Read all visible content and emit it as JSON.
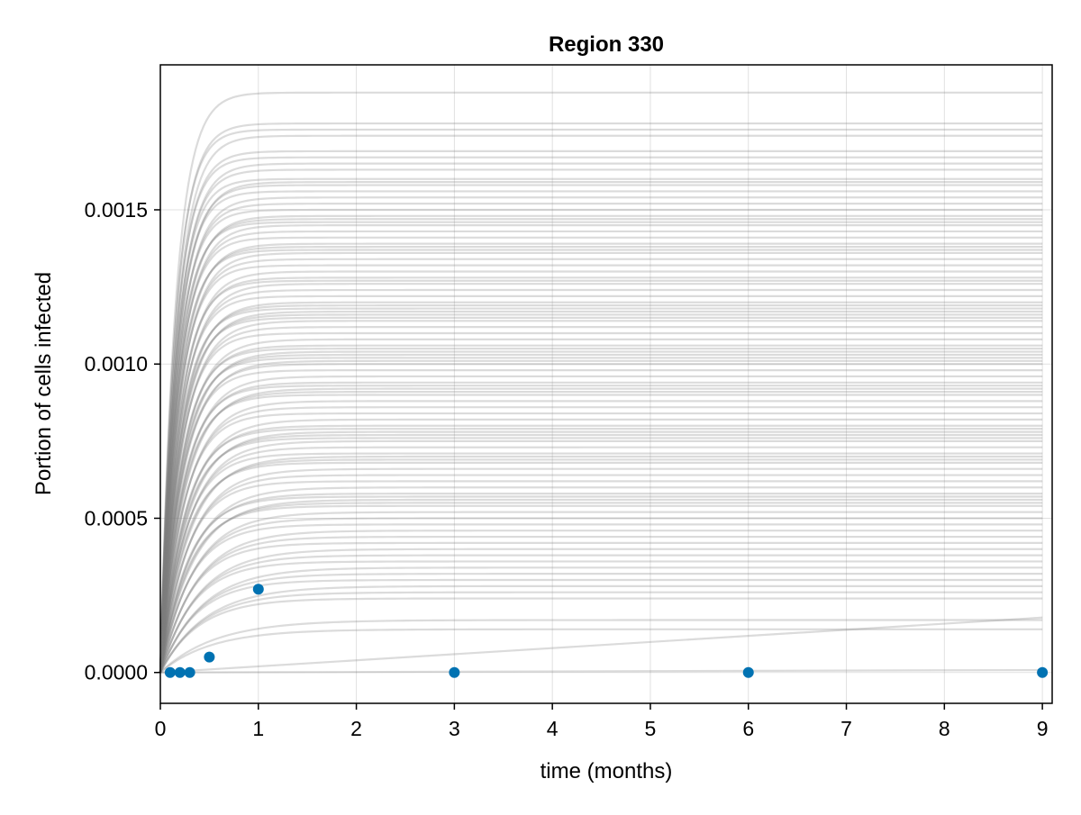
{
  "chart_data": {
    "type": "line",
    "title": "Region 330",
    "xlabel": "time (months)",
    "ylabel": "Portion of cells infected",
    "xlim": [
      0,
      9.1
    ],
    "ylim": [
      -0.0001,
      0.00197
    ],
    "xticks": [
      0,
      1,
      2,
      3,
      4,
      5,
      6,
      7,
      8,
      9
    ],
    "xtick_labels": [
      "0",
      "1",
      "2",
      "3",
      "4",
      "5",
      "6",
      "7",
      "8",
      "9"
    ],
    "yticks": [
      0.0,
      0.0005,
      0.001,
      0.0015
    ],
    "ytick_labels": [
      "0.0000",
      "0.0005",
      "0.0010",
      "0.0015"
    ],
    "grid": true,
    "ensemble": {
      "color": "#7f7f7f",
      "opacity": 0.28,
      "x_range": [
        0,
        9
      ],
      "plateau_values": [
        0.00188,
        0.00178,
        0.00176,
        0.00174,
        0.00169,
        0.00167,
        0.00165,
        0.00163,
        0.0016,
        0.00159,
        0.00158,
        0.00156,
        0.00154,
        0.00152,
        0.0015,
        0.00148,
        0.00147,
        0.00146,
        0.00145,
        0.00143,
        0.00141,
        0.00139,
        0.00138,
        0.00137,
        0.00136,
        0.00134,
        0.00132,
        0.0013,
        0.00128,
        0.00127,
        0.00126,
        0.00124,
        0.00122,
        0.0012,
        0.00119,
        0.00118,
        0.00117,
        0.00116,
        0.00115,
        0.00114,
        0.00112,
        0.0011,
        0.00108,
        0.00106,
        0.00105,
        0.00104,
        0.00103,
        0.00102,
        0.00101,
        0.001,
        0.00098,
        0.00096,
        0.00094,
        0.00093,
        0.00092,
        0.00091,
        0.0009,
        0.00088,
        0.00086,
        0.00084,
        0.00082,
        0.0008,
        0.00079,
        0.00078,
        0.00077,
        0.00076,
        0.00075,
        0.00073,
        0.00071,
        0.0007,
        0.00069,
        0.00068,
        0.00066,
        0.00064,
        0.00062,
        0.0006,
        0.00058,
        0.00057,
        0.00056,
        0.00055,
        0.00054,
        0.00052,
        0.0005,
        0.00048,
        0.00046,
        0.00044,
        0.00042,
        0.0004,
        0.00038,
        0.00036,
        0.00034,
        0.00032,
        0.0003,
        0.00028,
        0.00026,
        0.00024,
        0.00017,
        0.00014
      ],
      "special": {
        "linear_end": 0.000178,
        "flat_end": 8e-06
      }
    },
    "series": [
      {
        "type": "scatter",
        "color": "#0072b2",
        "x": [
          0.1,
          0.2,
          0.3,
          0.5,
          1,
          3,
          6,
          9
        ],
        "y": [
          0.0,
          0.0,
          0.0,
          5e-05,
          0.00027,
          0.0,
          0.0,
          0.0
        ]
      }
    ]
  }
}
